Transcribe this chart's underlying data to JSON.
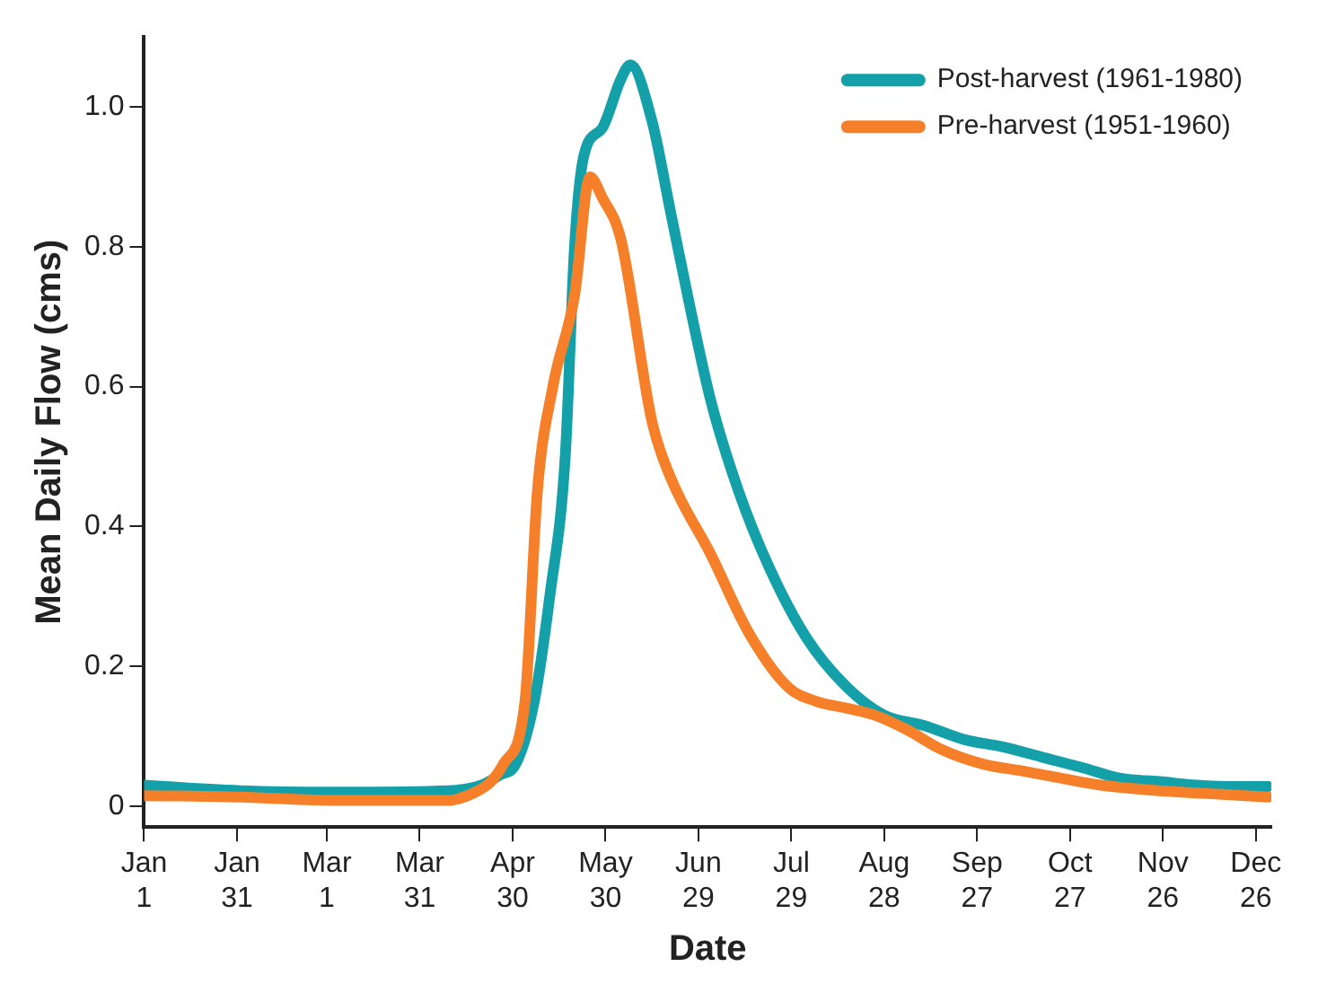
{
  "chart_data": {
    "type": "line",
    "xlabel": "Date",
    "ylabel": "Mean Daily Flow (cms)",
    "grid": false,
    "legend": "top right",
    "marker": "none",
    "line_style": "solid",
    "xlim": [
      "--01-01",
      "--12-31"
    ],
    "ylim": [
      -0.03,
      1.1
    ],
    "xticks": [
      {
        "value": "--01-01",
        "label": "Jan 1"
      },
      {
        "value": "--01-31",
        "label": "Jan 31"
      },
      {
        "value": "--03-01",
        "label": "Mar 1"
      },
      {
        "value": "--03-31",
        "label": "Mar 31"
      },
      {
        "value": "--04-30",
        "label": "Apr 30"
      },
      {
        "value": "--05-30",
        "label": "May 30"
      },
      {
        "value": "--06-29",
        "label": "Jun 29"
      },
      {
        "value": "--07-29",
        "label": "Jul 29"
      },
      {
        "value": "--08-28",
        "label": "Aug 28"
      },
      {
        "value": "--09-27",
        "label": "Sep 27"
      },
      {
        "value": "--10-27",
        "label": "Oct 27"
      },
      {
        "value": "--11-26",
        "label": "Nov 26"
      },
      {
        "value": "--12-26",
        "label": "Dec 26"
      }
    ],
    "yticks": [
      0,
      0.2,
      0.4,
      0.6,
      0.8,
      {
        "value": 1,
        "label": "1.0"
      }
    ],
    "series": [
      {
        "name": "Post-harvest (1961-1980)",
        "color": "#14a0a8",
        "x": [
          "--01-01",
          "--02-01",
          "--03-05",
          "--04-09",
          "--04-20",
          "--04-26",
          "--05-01",
          "--05-07",
          "--05-12",
          "--05-17",
          "--05-20",
          "--05-23",
          "--05-29",
          "--06-04",
          "--06-07",
          "--06-14",
          "--06-20",
          "--06-26",
          "--07-03",
          "--07-12",
          "--07-22",
          "--08-03",
          "--08-16",
          "--08-28",
          "--09-10",
          "--09-23",
          "--10-05",
          "--10-18",
          "--10-31",
          "--11-12",
          "--11-25",
          "--12-07",
          "--12-20",
          "--12-30"
        ],
        "values": [
          0.03,
          0.022,
          0.02,
          0.022,
          0.03,
          0.045,
          0.06,
          0.15,
          0.3,
          0.5,
          0.8,
          0.93,
          0.97,
          1.04,
          1.06,
          0.98,
          0.85,
          0.72,
          0.58,
          0.45,
          0.34,
          0.24,
          0.17,
          0.13,
          0.115,
          0.095,
          0.085,
          0.07,
          0.055,
          0.04,
          0.035,
          0.03,
          0.028,
          0.028
        ]
      },
      {
        "name": "Pre-harvest (1951-1960)",
        "color": "#f6802a",
        "x": [
          "--01-01",
          "--02-01",
          "--03-05",
          "--04-09",
          "--04-18",
          "--04-23",
          "--04-27",
          "--05-04",
          "--05-08",
          "--05-13",
          "--05-20",
          "--05-25",
          "--05-29",
          "--06-04",
          "--06-14",
          "--06-20",
          "--07-03",
          "--07-15",
          "--07-28",
          "--08-06",
          "--08-16",
          "--08-25",
          "--09-04",
          "--09-16",
          "--09-29",
          "--10-12",
          "--10-24",
          "--11-06",
          "--11-25",
          "--12-14",
          "--12-30"
        ],
        "values": [
          0.015,
          0.013,
          0.008,
          0.008,
          0.02,
          0.035,
          0.06,
          0.15,
          0.45,
          0.6,
          0.73,
          0.9,
          0.87,
          0.81,
          0.55,
          0.47,
          0.36,
          0.25,
          0.17,
          0.15,
          0.14,
          0.13,
          0.11,
          0.08,
          0.06,
          0.05,
          0.04,
          0.03,
          0.022,
          0.017,
          0.013
        ]
      }
    ]
  }
}
